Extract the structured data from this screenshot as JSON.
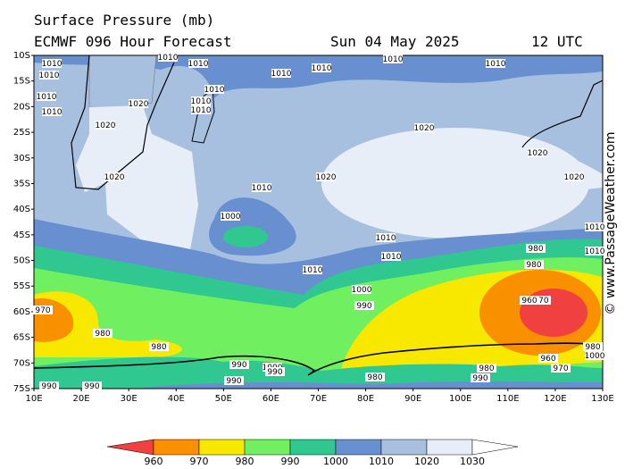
{
  "header": {
    "title": "Surface Pressure (mb)",
    "model": "ECMWF 096 Hour Forecast",
    "date": "Sun 04 May 2025",
    "time": "12 UTC"
  },
  "map": {
    "lat_labels": [
      "10S",
      "15S",
      "20S",
      "25S",
      "30S",
      "35S",
      "40S",
      "45S",
      "50S",
      "55S",
      "60S",
      "65S",
      "70S",
      "75S"
    ],
    "lon_labels": [
      "10E",
      "20E",
      "30E",
      "40E",
      "50E",
      "60E",
      "70E",
      "80E",
      "90E",
      "100E",
      "110E",
      "120E",
      "130E"
    ],
    "contour_labels": [
      "1010",
      "1010",
      "1010",
      "1010",
      "1010",
      "1010",
      "1010",
      "1010",
      "1010",
      "1010",
      "1010",
      "1010",
      "1010",
      "1020",
      "1020",
      "1020",
      "1020",
      "1020",
      "1020",
      "1020",
      "1010",
      "1010",
      "1010",
      "1010",
      "1010",
      "1010",
      "1000",
      "1000",
      "1000",
      "1000",
      "990",
      "990",
      "990",
      "990",
      "990",
      "990",
      "990",
      "980",
      "980",
      "980",
      "980",
      "980",
      "980",
      "980",
      "970",
      "970",
      "970",
      "960",
      "960"
    ]
  },
  "legend": {
    "labels": [
      "960",
      "970",
      "980",
      "990",
      "1000",
      "1010",
      "1020",
      "1030"
    ]
  },
  "watermark": "© www.PassageWeather.com"
}
